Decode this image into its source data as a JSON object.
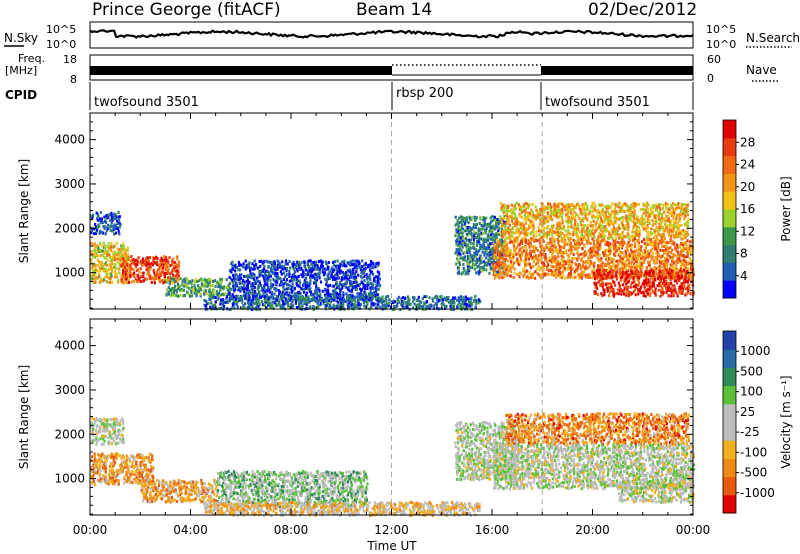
{
  "header": {
    "station": "Prince George (fitACF)",
    "beam": "Beam 14",
    "date": "02/Dec/2012"
  },
  "top_panels": {
    "nsky_label": "N.Sky",
    "nsearch_label": "N.Search",
    "freq_label": "Freq.",
    "freq_unit": "[MHz]",
    "nave_label": "Nave",
    "cpid_label": "CPID",
    "nsky_ticks": [
      "10^5",
      "10^0"
    ],
    "nsearch_ticks": [
      "10^5",
      "10^0"
    ],
    "freq_ticks": [
      "18",
      "8"
    ],
    "nave_ticks": [
      "60",
      "0"
    ],
    "cpid_segments": [
      {
        "label": "twofsound 3501",
        "start_h": 0,
        "end_h": 12
      },
      {
        "label": "rbsp 200",
        "start_h": 12,
        "end_h": 18
      },
      {
        "label": "twofsound 3501",
        "start_h": 18,
        "end_h": 24
      }
    ]
  },
  "chart_data": [
    {
      "type": "heatmap",
      "name": "power",
      "ylabel": "Slant Range [km]",
      "xlabel": "Time UT",
      "xlim": [
        0,
        24
      ],
      "ylim": [
        180,
        4600
      ],
      "x_ticks": [
        "00:00",
        "04:00",
        "08:00",
        "12:00",
        "16:00",
        "20:00",
        "00:00"
      ],
      "y_ticks": [
        1000,
        2000,
        3000,
        4000
      ],
      "colorbar": {
        "label": "Power [dB]",
        "ticks": [
          "4",
          "8",
          "12",
          "16",
          "20",
          "24",
          "28"
        ],
        "colors": [
          "#0000ff",
          "#1f5fb8",
          "#2e7d6e",
          "#3a9a4a",
          "#9ad12a",
          "#f2c21a",
          "#f29418",
          "#ef6a12",
          "#e83a10",
          "#e00000"
        ]
      },
      "scatter_regions": [
        {
          "t0": 0.0,
          "t1": 1.2,
          "r0": 1900,
          "r1": 2400,
          "level": 0.15
        },
        {
          "t0": 0.0,
          "t1": 1.5,
          "r0": 800,
          "r1": 1700,
          "level": 0.55
        },
        {
          "t0": 1.2,
          "t1": 3.5,
          "r0": 800,
          "r1": 1400,
          "level": 0.8
        },
        {
          "t0": 3.0,
          "t1": 5.5,
          "r0": 500,
          "r1": 900,
          "level": 0.35
        },
        {
          "t0": 5.5,
          "t1": 11.5,
          "r0": 400,
          "r1": 1300,
          "level": 0.1
        },
        {
          "t0": 4.5,
          "t1": 15.5,
          "r0": 200,
          "r1": 500,
          "level": 0.2
        },
        {
          "t0": 14.5,
          "t1": 16.5,
          "r0": 1000,
          "r1": 2300,
          "level": 0.25
        },
        {
          "t0": 16.3,
          "t1": 23.8,
          "r0": 1800,
          "r1": 2600,
          "level": 0.6
        },
        {
          "t0": 16.0,
          "t1": 24.0,
          "r0": 900,
          "r1": 1800,
          "level": 0.7
        },
        {
          "t0": 20.0,
          "t1": 24.0,
          "r0": 500,
          "r1": 1100,
          "level": 0.9
        }
      ]
    },
    {
      "type": "heatmap",
      "name": "velocity",
      "ylabel": "Slant Range [km]",
      "xlabel": "Time UT",
      "xlim": [
        0,
        24
      ],
      "ylim": [
        180,
        4600
      ],
      "x_ticks": [
        "00:00",
        "04:00",
        "08:00",
        "12:00",
        "16:00",
        "20:00",
        "00:00"
      ],
      "y_ticks": [
        1000,
        2000,
        3000,
        4000
      ],
      "colorbar": {
        "label": "Velocity [m s⁻¹]",
        "ticks": [
          "1000",
          "500",
          "100",
          "25",
          "-25",
          "-100",
          "-500",
          "-1000"
        ],
        "colors": [
          "#2242a8",
          "#2a6aa8",
          "#2f8a5a",
          "#59c23a",
          "#bcbcbc",
          "#bcbcbc",
          "#f2b020",
          "#ef8a14",
          "#e85a10",
          "#e00000"
        ]
      },
      "scatter_regions": [
        {
          "t0": 0.0,
          "t1": 1.3,
          "r0": 1800,
          "r1": 2400,
          "level": 0.5
        },
        {
          "t0": 0.0,
          "t1": 2.5,
          "r0": 900,
          "r1": 1600,
          "level": 0.72
        },
        {
          "t0": 2.0,
          "t1": 5.0,
          "r0": 500,
          "r1": 1000,
          "level": 0.7
        },
        {
          "t0": 5.0,
          "t1": 11.0,
          "r0": 400,
          "r1": 1200,
          "level": 0.4
        },
        {
          "t0": 4.5,
          "t1": 15.5,
          "r0": 200,
          "r1": 500,
          "level": 0.6
        },
        {
          "t0": 14.5,
          "t1": 17.0,
          "r0": 1000,
          "r1": 2300,
          "level": 0.48
        },
        {
          "t0": 16.5,
          "t1": 23.8,
          "r0": 1800,
          "r1": 2500,
          "level": 0.75
        },
        {
          "t0": 16.0,
          "t1": 24.0,
          "r0": 800,
          "r1": 1800,
          "level": 0.48
        },
        {
          "t0": 21.0,
          "t1": 24.0,
          "r0": 500,
          "r1": 1000,
          "level": 0.5
        }
      ]
    }
  ]
}
